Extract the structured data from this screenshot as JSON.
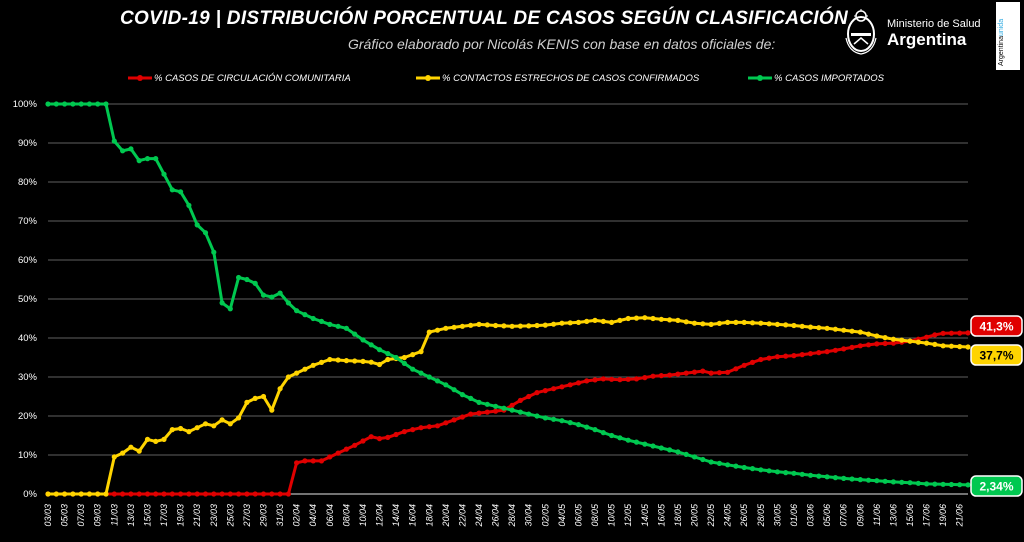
{
  "header": {
    "title": "COVID-19  |  DISTRIBUCIÓN PORCENTUAL DE CASOS SEGÚN CLASIFICACIÓN",
    "subtitle": "Gráfico elaborado por Nicolás KENIS con base en datos oficiales de:"
  },
  "logo": {
    "ministry": "Ministerio de Salud",
    "country": "Argentina",
    "side_text_main": "Argentina",
    "side_text_accent": "unida"
  },
  "colors": {
    "background": "#000000",
    "community": "#e00000",
    "contacts": "#ffd400",
    "imported": "#00c850",
    "grid": "#ffffff"
  },
  "chart_data": {
    "type": "line",
    "title": "COVID-19  |  DISTRIBUCIÓN PORCENTUAL DE CASOS SEGÚN CLASIFICACIÓN",
    "xlabel": "",
    "ylabel": "",
    "ylim": [
      0,
      100
    ],
    "yticks": [
      "0%",
      "10%",
      "20%",
      "30%",
      "40%",
      "50%",
      "60%",
      "70%",
      "80%",
      "90%",
      "100%"
    ],
    "x_start": "03/03",
    "x_end": "22/06",
    "x_tick_labels": [
      "03/03",
      "05/03",
      "07/03",
      "09/03",
      "11/03",
      "13/03",
      "15/03",
      "17/03",
      "19/03",
      "21/03",
      "23/03",
      "25/03",
      "27/03",
      "29/03",
      "31/03",
      "02/04",
      "04/04",
      "06/04",
      "08/04",
      "10/04",
      "12/04",
      "14/04",
      "16/04",
      "18/04",
      "20/04",
      "22/04",
      "24/04",
      "26/04",
      "28/04",
      "30/04",
      "02/05",
      "04/05",
      "06/05",
      "08/05",
      "10/05",
      "12/05",
      "14/05",
      "16/05",
      "18/05",
      "20/05",
      "22/05",
      "24/05",
      "26/05",
      "28/05",
      "30/05",
      "01/06",
      "03/06",
      "05/06",
      "07/06",
      "09/06",
      "11/06",
      "13/06",
      "15/06",
      "17/06",
      "19/06",
      "21/06"
    ],
    "grid": true,
    "legend_position": "top",
    "series": [
      {
        "name": "% CASOS DE CIRCULACIÓN COMUNITARIA",
        "color": "#e00000",
        "end_label": "41,3%",
        "points": [
          [
            "03/03",
            0
          ],
          [
            "31/03",
            0
          ],
          [
            "01/04",
            0
          ],
          [
            "02/04",
            8
          ],
          [
            "03/04",
            8.5
          ],
          [
            "05/04",
            8.5
          ],
          [
            "07/04",
            10.5
          ],
          [
            "09/04",
            12.5
          ],
          [
            "11/04",
            14.7
          ],
          [
            "12/04",
            14.2
          ],
          [
            "13/04",
            14.5
          ],
          [
            "15/04",
            16
          ],
          [
            "17/04",
            17
          ],
          [
            "19/04",
            17.5
          ],
          [
            "21/04",
            19
          ],
          [
            "23/04",
            20.5
          ],
          [
            "25/04",
            21
          ],
          [
            "27/04",
            21.5
          ],
          [
            "29/04",
            24
          ],
          [
            "01/05",
            26
          ],
          [
            "03/05",
            27
          ],
          [
            "05/05",
            28
          ],
          [
            "07/05",
            29
          ],
          [
            "09/05",
            29.5
          ],
          [
            "11/05",
            29.3
          ],
          [
            "13/05",
            29.5
          ],
          [
            "15/05",
            30.2
          ],
          [
            "17/05",
            30.5
          ],
          [
            "19/05",
            31
          ],
          [
            "21/05",
            31.5
          ],
          [
            "22/05",
            31
          ],
          [
            "24/05",
            31.2
          ],
          [
            "26/05",
            33
          ],
          [
            "28/05",
            34.5
          ],
          [
            "30/05",
            35.2
          ],
          [
            "01/06",
            35.5
          ],
          [
            "03/06",
            36
          ],
          [
            "05/06",
            36.5
          ],
          [
            "07/06",
            37.2
          ],
          [
            "09/06",
            38
          ],
          [
            "11/06",
            38.5
          ],
          [
            "13/06",
            38.7
          ],
          [
            "15/06",
            39.2
          ],
          [
            "17/06",
            40.2
          ],
          [
            "18/06",
            40.8
          ],
          [
            "19/06",
            41.2
          ],
          [
            "22/06",
            41.3
          ]
        ]
      },
      {
        "name": "% CONTACTOS ESTRECHOS DE CASOS CONFIRMADOS",
        "color": "#ffd400",
        "end_label": "37,7%",
        "points": [
          [
            "03/03",
            0
          ],
          [
            "10/03",
            0
          ],
          [
            "11/03",
            9.5
          ],
          [
            "12/03",
            10.5
          ],
          [
            "13/03",
            12
          ],
          [
            "14/03",
            11
          ],
          [
            "15/03",
            14
          ],
          [
            "16/03",
            13.5
          ],
          [
            "17/03",
            14
          ],
          [
            "18/03",
            16.5
          ],
          [
            "19/03",
            16.8
          ],
          [
            "20/03",
            16
          ],
          [
            "21/03",
            17
          ],
          [
            "22/03",
            18
          ],
          [
            "23/03",
            17.5
          ],
          [
            "24/03",
            19
          ],
          [
            "25/03",
            18
          ],
          [
            "26/03",
            19.5
          ],
          [
            "27/03",
            23.5
          ],
          [
            "28/03",
            24.5
          ],
          [
            "29/03",
            25
          ],
          [
            "30/03",
            21.5
          ],
          [
            "31/03",
            27
          ],
          [
            "01/04",
            30
          ],
          [
            "02/04",
            31
          ],
          [
            "04/04",
            33
          ],
          [
            "06/04",
            34.5
          ],
          [
            "08/04",
            34.2
          ],
          [
            "10/04",
            34
          ],
          [
            "11/04",
            33.8
          ],
          [
            "12/04",
            33.2
          ],
          [
            "13/04",
            34.5
          ],
          [
            "15/04",
            35
          ],
          [
            "17/04",
            36.5
          ],
          [
            "18/04",
            41.5
          ],
          [
            "20/04",
            42.5
          ],
          [
            "22/04",
            43
          ],
          [
            "24/04",
            43.5
          ],
          [
            "26/04",
            43.2
          ],
          [
            "28/04",
            43
          ],
          [
            "30/04",
            43.1
          ],
          [
            "02/05",
            43.3
          ],
          [
            "04/05",
            43.8
          ],
          [
            "06/05",
            44
          ],
          [
            "08/05",
            44.5
          ],
          [
            "10/05",
            44
          ],
          [
            "12/05",
            45
          ],
          [
            "14/05",
            45.2
          ],
          [
            "16/05",
            44.8
          ],
          [
            "18/05",
            44.5
          ],
          [
            "20/05",
            43.8
          ],
          [
            "22/05",
            43.5
          ],
          [
            "24/05",
            44
          ],
          [
            "26/05",
            44
          ],
          [
            "28/05",
            43.8
          ],
          [
            "30/05",
            43.5
          ],
          [
            "01/06",
            43.2
          ],
          [
            "03/06",
            42.8
          ],
          [
            "05/06",
            42.5
          ],
          [
            "07/06",
            42
          ],
          [
            "09/06",
            41.5
          ],
          [
            "11/06",
            40.5
          ],
          [
            "13/06",
            39.7
          ],
          [
            "15/06",
            39.2
          ],
          [
            "17/06",
            38.7
          ],
          [
            "19/06",
            38
          ],
          [
            "22/06",
            37.7
          ]
        ]
      },
      {
        "name": "% CASOS IMPORTADOS",
        "color": "#00c850",
        "end_label": "2,34%",
        "points": [
          [
            "03/03",
            100
          ],
          [
            "10/03",
            100
          ],
          [
            "11/03",
            90.5
          ],
          [
            "12/03",
            88
          ],
          [
            "13/03",
            88.5
          ],
          [
            "14/03",
            85.5
          ],
          [
            "15/03",
            86
          ],
          [
            "16/03",
            86
          ],
          [
            "17/03",
            82
          ],
          [
            "18/03",
            78
          ],
          [
            "19/03",
            77.5
          ],
          [
            "20/03",
            74
          ],
          [
            "21/03",
            69
          ],
          [
            "22/03",
            67
          ],
          [
            "23/03",
            62
          ],
          [
            "24/03",
            49
          ],
          [
            "25/03",
            47.5
          ],
          [
            "26/03",
            55.5
          ],
          [
            "27/03",
            55
          ],
          [
            "28/03",
            54
          ],
          [
            "29/03",
            51
          ],
          [
            "30/03",
            50.5
          ],
          [
            "31/03",
            51.5
          ],
          [
            "01/04",
            49
          ],
          [
            "02/04",
            47
          ],
          [
            "04/04",
            45
          ],
          [
            "06/04",
            43.5
          ],
          [
            "08/04",
            42.5
          ],
          [
            "10/04",
            39.5
          ],
          [
            "12/04",
            37
          ],
          [
            "14/04",
            35
          ],
          [
            "16/04",
            32
          ],
          [
            "18/04",
            30
          ],
          [
            "20/04",
            28
          ],
          [
            "22/04",
            25.5
          ],
          [
            "24/04",
            23.5
          ],
          [
            "26/04",
            22.5
          ],
          [
            "28/04",
            21.5
          ],
          [
            "30/04",
            20.5
          ],
          [
            "02/05",
            19.5
          ],
          [
            "04/05",
            18.8
          ],
          [
            "06/05",
            17.8
          ],
          [
            "08/05",
            16.5
          ],
          [
            "10/05",
            15
          ],
          [
            "12/05",
            13.8
          ],
          [
            "14/05",
            12.8
          ],
          [
            "16/05",
            11.8
          ],
          [
            "18/05",
            10.8
          ],
          [
            "20/05",
            9.5
          ],
          [
            "22/05",
            8.2
          ],
          [
            "24/05",
            7.5
          ],
          [
            "26/05",
            6.8
          ],
          [
            "28/05",
            6.2
          ],
          [
            "30/05",
            5.7
          ],
          [
            "01/06",
            5.3
          ],
          [
            "03/06",
            4.8
          ],
          [
            "05/06",
            4.4
          ],
          [
            "07/06",
            4
          ],
          [
            "09/06",
            3.7
          ],
          [
            "11/06",
            3.4
          ],
          [
            "13/06",
            3.1
          ],
          [
            "15/06",
            2.9
          ],
          [
            "17/06",
            2.6
          ],
          [
            "19/06",
            2.5
          ],
          [
            "22/06",
            2.34
          ]
        ]
      }
    ]
  }
}
